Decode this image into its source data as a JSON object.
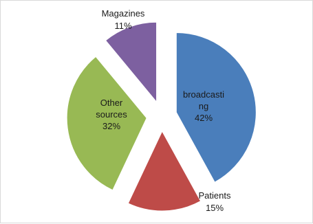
{
  "chart_data": {
    "type": "pie",
    "title": "",
    "legend": "none",
    "slices": [
      {
        "name": "broadcasting",
        "value": 42,
        "label_lines": [
          "broadcasti",
          "ng",
          "42%"
        ],
        "color": "#4a7ebb"
      },
      {
        "name": "Patients",
        "value": 15,
        "label_lines": [
          "Patients",
          "15%"
        ],
        "color": "#be4b48"
      },
      {
        "name": "Other sources",
        "value": 32,
        "label_lines": [
          "Other",
          "sources",
          "32%"
        ],
        "color": "#98b954"
      },
      {
        "name": "Magazines",
        "value": 11,
        "label_lines": [
          "Magazines",
          "11%"
        ],
        "color": "#7d60a0"
      }
    ]
  }
}
